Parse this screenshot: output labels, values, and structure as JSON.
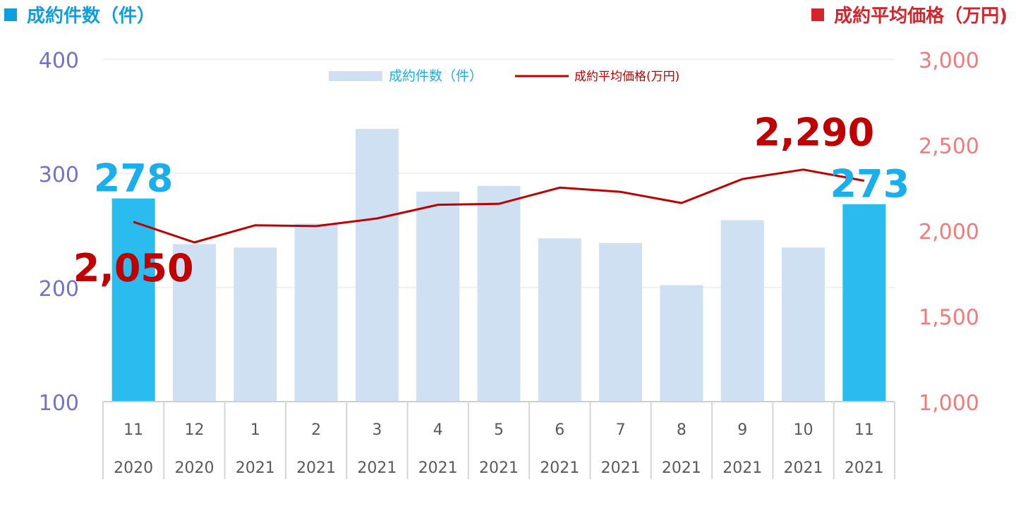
{
  "header": {
    "left_label": "成約件数（件）",
    "right_label": "成約平均価格（万円)",
    "left_color": "#0f9fdf",
    "right_color": "#d3252b"
  },
  "chart_data": {
    "type": "bar+line",
    "categories": [
      "11",
      "12",
      "1",
      "2",
      "3",
      "4",
      "5",
      "6",
      "7",
      "8",
      "9",
      "10",
      "11"
    ],
    "years": [
      "2020",
      "2020",
      "2021",
      "2021",
      "2021",
      "2021",
      "2021",
      "2021",
      "2021",
      "2021",
      "2021",
      "2021",
      "2021"
    ],
    "series": [
      {
        "name": "成約件数（件）",
        "type": "bar",
        "axis": "left",
        "values": [
          278,
          238,
          235,
          256,
          339,
          284,
          289,
          243,
          239,
          202,
          259,
          235,
          273
        ],
        "color": "#cfe0f3",
        "highlight_color": "#2abcee",
        "highlight_indices": [
          0,
          12
        ]
      },
      {
        "name": "成約平均価格(万円)",
        "type": "line",
        "axis": "right",
        "values": [
          2050,
          1930,
          2030,
          2025,
          2070,
          2150,
          2155,
          2250,
          2225,
          2160,
          2300,
          2355,
          2290
        ],
        "color": "#c00000"
      }
    ],
    "left_axis": {
      "ylim": [
        100,
        400
      ],
      "ticks": [
        "100",
        "200",
        "300",
        "400"
      ],
      "tick_values": [
        100,
        200,
        300,
        400
      ],
      "color": "#7272c6"
    },
    "right_axis": {
      "ylim": [
        1000,
        3000
      ],
      "ticks": [
        "1,000",
        "1,500",
        "2,000",
        "2,500",
        "3,000"
      ],
      "tick_values": [
        1000,
        1500,
        2000,
        2500,
        3000
      ],
      "color": "#f47a7a"
    },
    "annotations": [
      {
        "text": "278",
        "series": 0,
        "index": 0,
        "color": "#1aaeea"
      },
      {
        "text": "273",
        "series": 0,
        "index": 12,
        "color": "#1aaeea"
      },
      {
        "text": "2,050",
        "series": 1,
        "index": 0,
        "color": "#c00000"
      },
      {
        "text": "2,290",
        "series": 1,
        "index": 12,
        "color": "#c00000"
      }
    ],
    "legend": {
      "position": "top-center"
    },
    "grid": true
  }
}
